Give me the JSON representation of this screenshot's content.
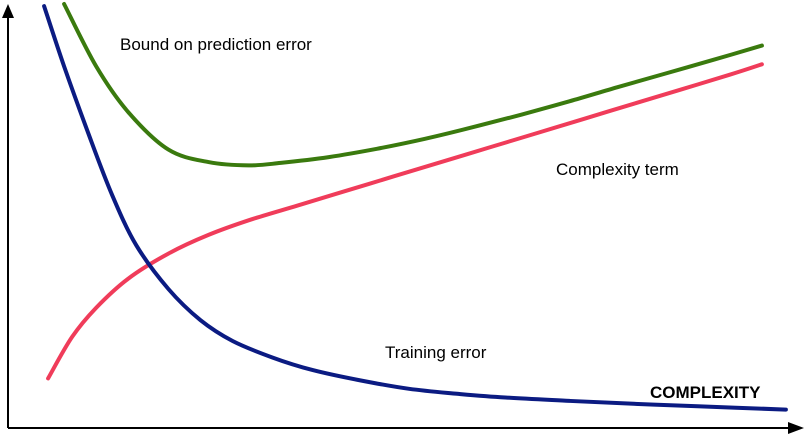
{
  "chart_data": {
    "type": "line",
    "title": "",
    "xlabel": "COMPLEXITY",
    "ylabel": "",
    "xlim": [
      0,
      1
    ],
    "ylim": [
      0,
      1
    ],
    "grid": false,
    "legend": "none",
    "series": [
      {
        "name": "Bound on prediction error",
        "color": "#3a7a0e",
        "x": [
          0.07,
          0.11,
          0.15,
          0.2,
          0.25,
          0.3,
          0.34,
          0.4,
          0.46,
          0.52,
          0.58,
          0.64,
          0.7,
          0.76,
          0.82,
          0.88,
          0.94
        ],
        "y": [
          1.0,
          0.85,
          0.74,
          0.65,
          0.62,
          0.612,
          0.618,
          0.632,
          0.652,
          0.676,
          0.704,
          0.734,
          0.766,
          0.8,
          0.833,
          0.866,
          0.9
        ]
      },
      {
        "name": "Complexity term",
        "color": "#f03c5a",
        "x": [
          0.05,
          0.08,
          0.11,
          0.15,
          0.2,
          0.25,
          0.3,
          0.36,
          0.42,
          0.48,
          0.54,
          0.6,
          0.66,
          0.72,
          0.78,
          0.84,
          0.9,
          0.94
        ],
        "y": [
          0.1,
          0.2,
          0.27,
          0.34,
          0.4,
          0.445,
          0.48,
          0.515,
          0.55,
          0.585,
          0.62,
          0.655,
          0.69,
          0.725,
          0.76,
          0.795,
          0.83,
          0.855
        ]
      },
      {
        "name": "Training error",
        "color": "#0b1b82",
        "x": [
          0.045,
          0.07,
          0.1,
          0.13,
          0.16,
          0.2,
          0.24,
          0.28,
          0.33,
          0.38,
          0.44,
          0.5,
          0.56,
          0.62,
          0.7,
          0.78,
          0.86,
          0.97
        ],
        "y": [
          0.995,
          0.85,
          0.69,
          0.54,
          0.42,
          0.315,
          0.24,
          0.19,
          0.15,
          0.12,
          0.095,
          0.075,
          0.063,
          0.054,
          0.046,
          0.039,
          0.033,
          0.025
        ]
      }
    ],
    "annotations": [
      {
        "text": "Bound on prediction error",
        "series": "Bound on prediction error"
      },
      {
        "text": "Complexity term",
        "series": "Complexity term"
      },
      {
        "text": "Training error",
        "series": "Training error"
      }
    ]
  }
}
